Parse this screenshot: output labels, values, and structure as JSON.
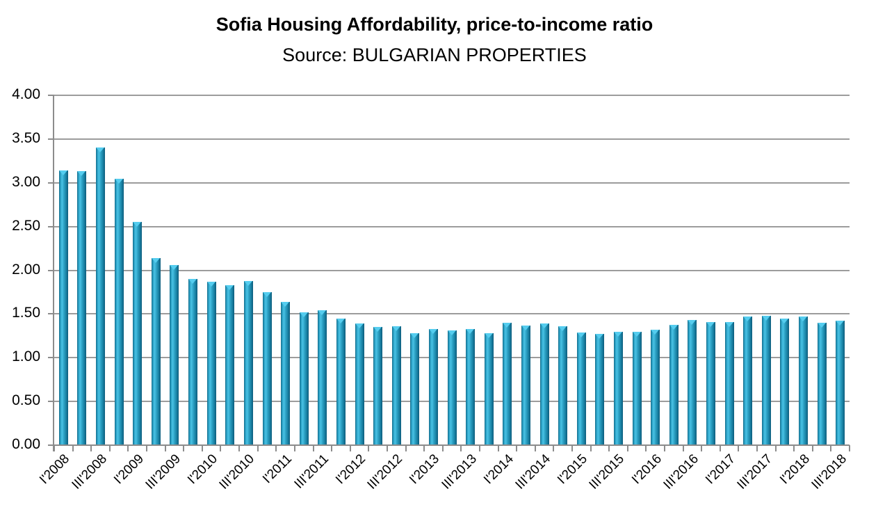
{
  "header": {
    "title": "Sofia Housing Affordability, price-to-income ratio",
    "subtitle": "Source: BULGARIAN PROPERTIES"
  },
  "chart_data": {
    "type": "bar",
    "title": "Sofia Housing Affordability, price-to-income ratio",
    "subtitle": "Source: BULGARIAN PROPERTIES",
    "categories": [
      "I'2008",
      "II'2008",
      "III'2008",
      "IV'2008",
      "I'2009",
      "II'2009",
      "III'2009",
      "IV'2009",
      "I'2010",
      "II'2010",
      "III'2010",
      "IV'2010",
      "I'2011",
      "II'2011",
      "III'2011",
      "IV'2011",
      "I'2012",
      "II'2012",
      "III'2012",
      "IV'2012",
      "I'2013",
      "II'2013",
      "III'2013",
      "IV'2013",
      "I'2014",
      "II'2014",
      "III'2014",
      "IV'2014",
      "I'2015",
      "II'2015",
      "III'2015",
      "IV'2015",
      "I'2016",
      "II'2016",
      "III'2016",
      "IV'2016",
      "I'2017",
      "II'2017",
      "III'2017",
      "IV'2017",
      "I'2018",
      "II'2018",
      "III'2018"
    ],
    "values": [
      3.14,
      3.13,
      3.4,
      3.05,
      2.55,
      2.14,
      2.06,
      1.9,
      1.87,
      1.83,
      1.88,
      1.75,
      1.64,
      1.52,
      1.54,
      1.45,
      1.39,
      1.35,
      1.36,
      1.28,
      1.33,
      1.31,
      1.33,
      1.28,
      1.4,
      1.37,
      1.39,
      1.36,
      1.29,
      1.27,
      1.3,
      1.3,
      1.32,
      1.38,
      1.43,
      1.41,
      1.41,
      1.47,
      1.48,
      1.45,
      1.47,
      1.4,
      1.42
    ],
    "visible_xtick_labels": [
      "I'2008",
      "III'2008",
      "I'2009",
      "III'2009",
      "I'2010",
      "III'2010",
      "I'2011",
      "III'2011",
      "I'2012",
      "III'2012",
      "I'2013",
      "III'2013",
      "I'2014",
      "III'2014",
      "I'2015",
      "III'2015",
      "I'2016",
      "III'2016",
      "I'2017",
      "III'2017",
      "I'2018",
      "III'2018"
    ],
    "label_every": 2,
    "xlabel": "",
    "ylabel": "",
    "ylim": [
      0,
      4
    ],
    "ytick_step": 0.5,
    "yticks": [
      "0.00",
      "0.50",
      "1.00",
      "1.50",
      "2.00",
      "2.50",
      "3.00",
      "3.50",
      "4.00"
    ],
    "grid": "horizontal",
    "legend": "none",
    "colors": {
      "bar_main": "#2E9EC0",
      "bar_highlight": "#49C2E4",
      "bar_edge_dark": "#0F6280",
      "bar_cap": "#55CDEF",
      "gridline": "#9C9C9C",
      "axis": "#8C8C8C",
      "text": "#000000",
      "background": "#FFFFFF"
    }
  }
}
